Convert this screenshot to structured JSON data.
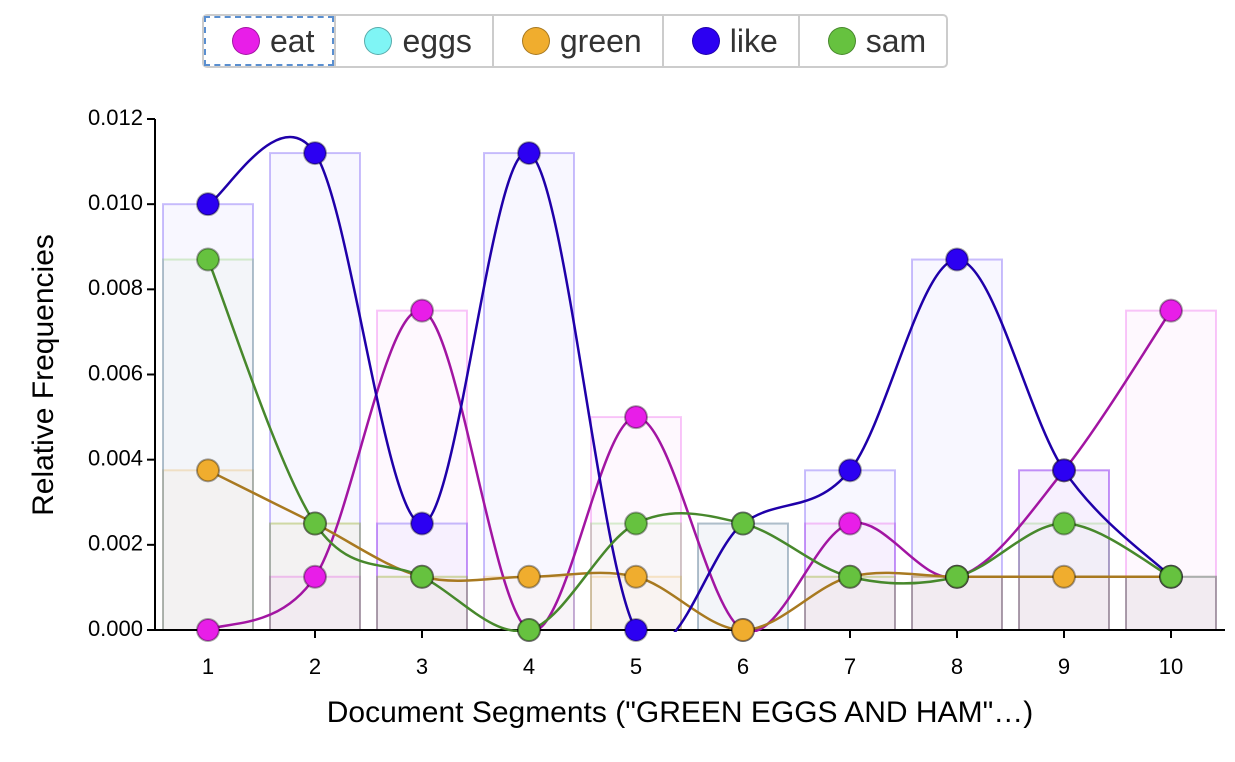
{
  "chart_data": {
    "type": "line",
    "xlabel": "Document Segments (\"GREEN EGGS AND HAM\"…)",
    "ylabel": "Relative Frequencies",
    "categories": [
      "1",
      "2",
      "3",
      "4",
      "5",
      "6",
      "7",
      "8",
      "9",
      "10"
    ],
    "series": [
      {
        "name": "eat",
        "color": "#e81ee8",
        "values": [
          0,
          0.00125,
          0.0075,
          0,
          0.005,
          0,
          0.0025,
          0.00125,
          0.00375,
          0.0075
        ]
      },
      {
        "name": "eggs",
        "color": "#7ff5f5",
        "values": [
          null,
          null,
          null,
          null,
          null,
          null,
          null,
          null,
          null,
          null
        ]
      },
      {
        "name": "green",
        "color": "#f0ad2e",
        "values": [
          0.00375,
          0.0025,
          0.00125,
          0.00125,
          0.00125,
          0,
          0.00125,
          0.00125,
          0.00125,
          0.00125
        ]
      },
      {
        "name": "like",
        "color": "#2c00f2",
        "values": [
          0.01,
          0.0112,
          0.0025,
          0.0112,
          0,
          0.0025,
          0.00375,
          0.0087,
          0.00375,
          0.00125
        ]
      },
      {
        "name": "sam",
        "color": "#66c23f",
        "values": [
          0.0087,
          0.0025,
          0.00125,
          0,
          0.0025,
          0.0025,
          0.00125,
          0.00125,
          0.0025,
          0.00125
        ]
      }
    ],
    "ylim": [
      0,
      0.012
    ],
    "yticks": [
      {
        "value": 0,
        "label": "0.000"
      },
      {
        "value": 0.002,
        "label": "0.002"
      },
      {
        "value": 0.004,
        "label": "0.004"
      },
      {
        "value": 0.006,
        "label": "0.006"
      },
      {
        "value": 0.008,
        "label": "0.008"
      },
      {
        "value": 0.01,
        "label": "0.010"
      },
      {
        "value": 0.012,
        "label": "0.012"
      }
    ],
    "legend": "top"
  }
}
